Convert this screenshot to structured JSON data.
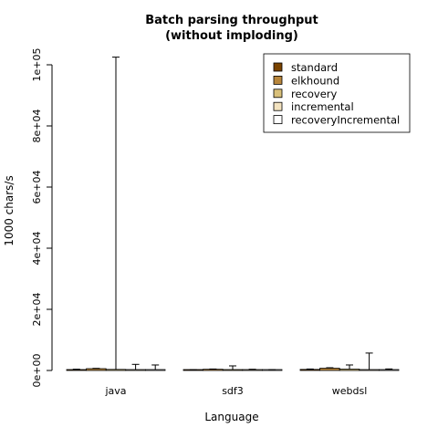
{
  "chart_data": {
    "type": "bar",
    "title": [
      "Batch parsing throughput",
      "(without imploding)"
    ],
    "xlabel": "Language",
    "ylabel": "1000 chars/s",
    "ylim": [
      0,
      100000
    ],
    "yticks": [
      0,
      20000,
      40000,
      60000,
      80000,
      100000
    ],
    "ytick_labels": [
      "0e+00",
      "2e+04",
      "4e+04",
      "6e+04",
      "8e+04",
      "1e+05"
    ],
    "categories": [
      "java",
      "sdf3",
      "webdsl"
    ],
    "legend_position": "top-right",
    "series": [
      {
        "name": "standard",
        "color": "#7a4300",
        "values": [
          300,
          200,
          350
        ],
        "err_high": [
          420,
          260,
          480
        ]
      },
      {
        "name": "elkhound",
        "color": "#b8863c",
        "values": [
          600,
          400,
          750
        ],
        "err_high": [
          700,
          480,
          900
        ]
      },
      {
        "name": "recovery",
        "color": "#d9c07a",
        "values": [
          350,
          250,
          450
        ],
        "err_high": [
          102500,
          1500,
          1800
        ]
      },
      {
        "name": "incremental",
        "color": "#f3e3c0",
        "values": [
          250,
          200,
          300
        ],
        "err_high": [
          2000,
          400,
          5700
        ]
      },
      {
        "name": "recoveryIncremental",
        "color": "#ffffff",
        "values": [
          200,
          150,
          300
        ],
        "err_high": [
          1800,
          300,
          500
        ]
      }
    ]
  }
}
